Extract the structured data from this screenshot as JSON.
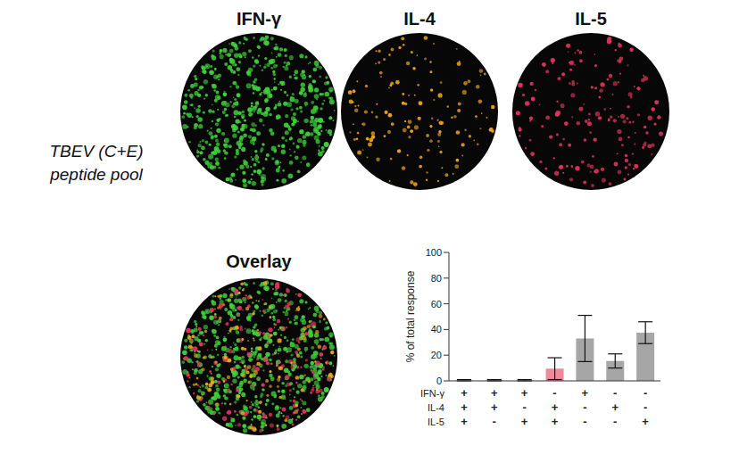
{
  "texts": {
    "column_titles": [
      "IFN-γ",
      "IL-4",
      "IL-5"
    ],
    "row_label": [
      "TBEV (C+E)",
      "peptide pool"
    ],
    "overlay_title": "Overlay"
  },
  "chart_data": {
    "type": "bar",
    "categories": [
      null,
      null,
      null,
      null,
      null,
      null,
      null
    ],
    "values": [
      0.5,
      0.5,
      0.5,
      9.5,
      33,
      15.5,
      37.5
    ],
    "errors": [
      0.5,
      0.5,
      0.5,
      8.5,
      18,
      5.5,
      8.5
    ],
    "colors": [
      "#a6a6a6",
      "#a6a6a6",
      "#a6a6a6",
      "#f08a9a",
      "#a6a6a6",
      "#a6a6a6",
      "#a6a6a6"
    ],
    "ylabel": "% of total response",
    "ylim": [
      0,
      100
    ],
    "yticks": [
      0,
      20,
      40,
      60,
      80,
      100
    ],
    "grid": false,
    "sign_rows": [
      {
        "name": "IFN-γ",
        "signs": [
          "+",
          "+",
          "+",
          "-",
          "+",
          "-",
          "-"
        ]
      },
      {
        "name": "IL-4",
        "signs": [
          "+",
          "+",
          "-",
          "+",
          "-",
          "+",
          "-"
        ]
      },
      {
        "name": "IL-5",
        "signs": [
          "+",
          "-",
          "+",
          "+",
          "-",
          "-",
          "+"
        ]
      }
    ]
  }
}
